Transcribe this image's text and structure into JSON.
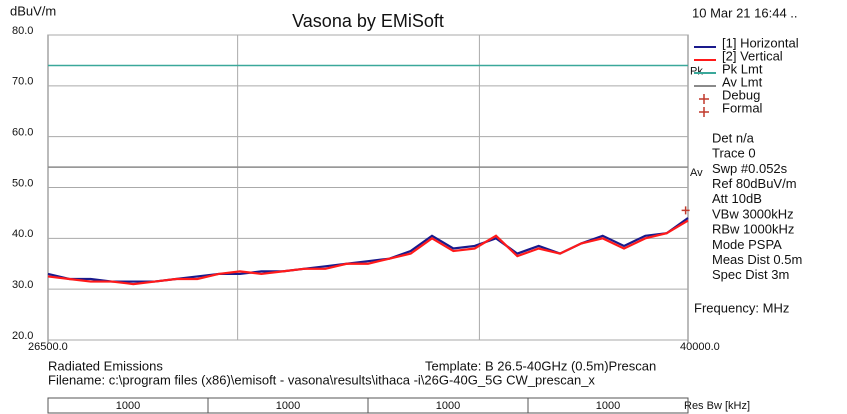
{
  "chart_data": {
    "type": "line",
    "title": "Vasona by EMiSoft",
    "y_label": "dBuV/m",
    "timestamp": "10 Mar 21 16:44 ..",
    "x_label": "Frequency: MHz",
    "xlim": [
      26500,
      40000
    ],
    "xticks": [
      {
        "value": 26500,
        "label": "26500.0"
      },
      {
        "value": 40000,
        "label": "40000.0"
      }
    ],
    "xgrid": [
      30500,
      35600
    ],
    "ylim": [
      20,
      80
    ],
    "yticks": [
      {
        "value": 20,
        "label": "20.0"
      },
      {
        "value": 30,
        "label": "30.0"
      },
      {
        "value": 40,
        "label": "40.0"
      },
      {
        "value": 50,
        "label": "50.0"
      },
      {
        "value": 60,
        "label": "60.0"
      },
      {
        "value": 70,
        "label": "70.0"
      },
      {
        "value": 80,
        "label": "80.0"
      }
    ],
    "grid": true,
    "x": [
      26500,
      26950,
      27400,
      27850,
      28300,
      28750,
      29200,
      29650,
      30100,
      30550,
      31000,
      31450,
      31900,
      32350,
      32800,
      33250,
      33700,
      34150,
      34600,
      35050,
      35500,
      35950,
      36400,
      36850,
      37300,
      37750,
      38200,
      38650,
      39100,
      39550,
      40000
    ],
    "series": [
      {
        "name": "[1] Horizontal",
        "color": "#1a1a8c",
        "values": [
          33,
          32,
          32,
          31.5,
          31.5,
          31.5,
          32,
          32.5,
          33,
          33,
          33.5,
          33.5,
          34,
          34.5,
          35,
          35.5,
          36,
          37.5,
          40.5,
          38,
          38.5,
          40,
          37,
          38.5,
          37,
          39,
          40.5,
          38.5,
          40.5,
          41,
          44
        ]
      },
      {
        "name": "[2] Vertical",
        "color": "#ff1a1a",
        "values": [
          32.5,
          32,
          31.5,
          31.5,
          31,
          31.5,
          32,
          32,
          33,
          33.5,
          33,
          33.5,
          34,
          34,
          35,
          35,
          36,
          37,
          40,
          37.5,
          38,
          40.5,
          36.5,
          38,
          37,
          39,
          40,
          38,
          40,
          41,
          43.5
        ]
      }
    ],
    "limits": [
      {
        "name": "Pk Lmt",
        "label": "Pk",
        "value": 74,
        "color": "#3aa89a"
      },
      {
        "name": "Av Lmt",
        "label": "Av",
        "value": 54,
        "color": "#8a8a8a"
      }
    ],
    "legend_extra": [
      {
        "name": "Debug",
        "color": "#c0392b"
      },
      {
        "name": "Formal",
        "color": "#c0392b"
      }
    ],
    "markers": [
      {
        "x": 39950,
        "y": 45.5
      }
    ],
    "info": [
      "Det n/a",
      "Trace 0",
      "Swp  #0.052s",
      "Ref  80dBuV/m",
      "Att  10dB",
      "VBw 3000kHz",
      "RBw 1000kHz",
      "Mode PSPA",
      "Meas Dist 0.5m",
      "Spec Dist 3m"
    ],
    "footer": {
      "test": "Radiated Emissions",
      "template": "Template: B 26.5-40GHz (0.5m)Prescan",
      "filename": "Filename: c:\\program files (x86)\\emisoft - vasona\\results\\ithaca -i\\26G-40G_5G CW_prescan_x"
    },
    "res_bw": {
      "label": "Res Bw [kHz]",
      "values": [
        1000,
        1000,
        1000,
        1000
      ]
    }
  }
}
